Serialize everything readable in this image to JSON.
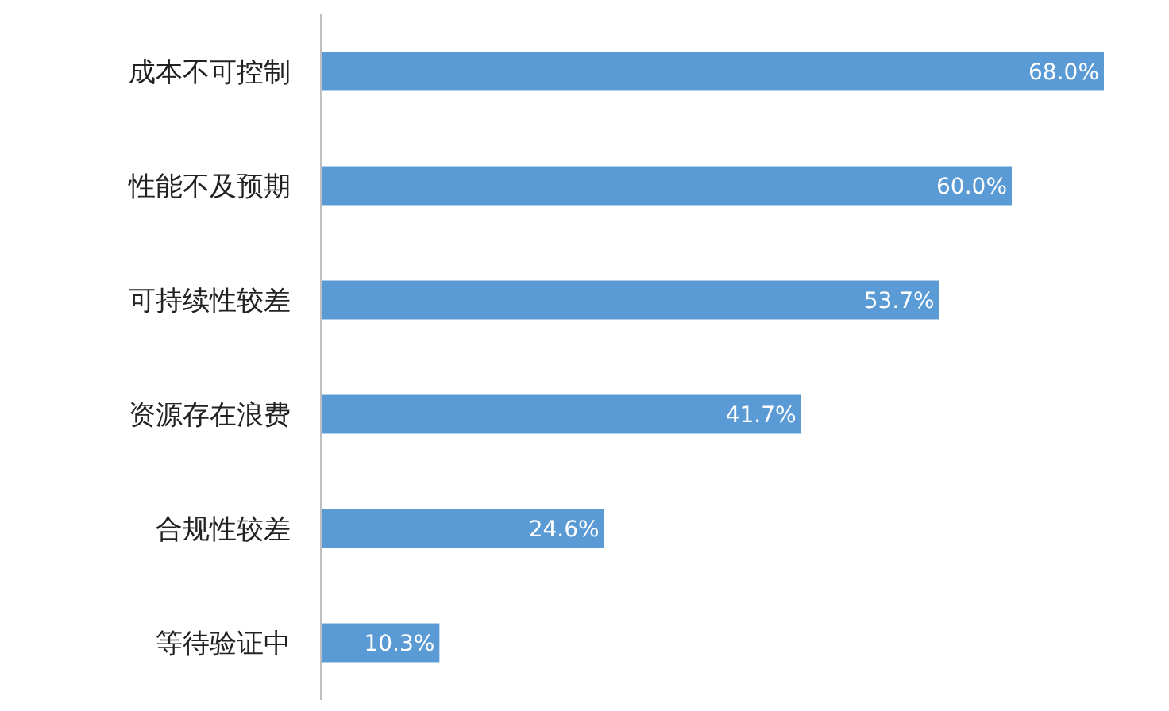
{
  "chart_data": {
    "type": "bar",
    "orientation": "horizontal",
    "categories": [
      "成本不可控制",
      "性能不及预期",
      "可持续性较差",
      "资源存在浪费",
      "合规性较差",
      "等待验证中"
    ],
    "values": [
      68.0,
      60.0,
      53.7,
      41.7,
      24.6,
      10.3
    ],
    "value_labels": [
      "68.0%",
      "60.0%",
      "53.7%",
      "41.7%",
      "24.6%",
      "10.3%"
    ],
    "color": "#5b9bd5"
  }
}
